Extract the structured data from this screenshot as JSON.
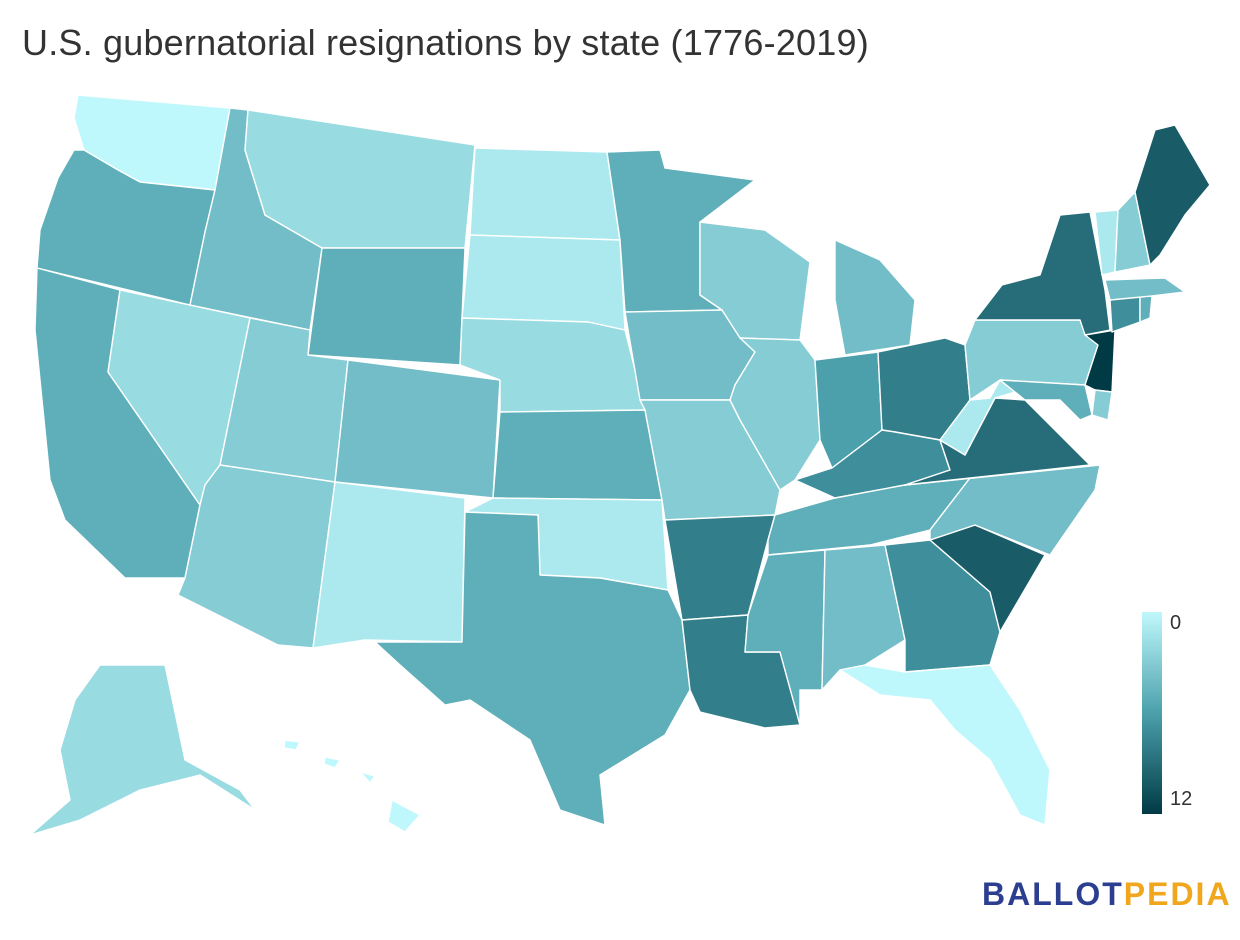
{
  "title": "U.S. gubernatorial resignations by state (1776-2019)",
  "legend": {
    "min_label": "0",
    "max_label": "12",
    "color_low": "#bff8fc",
    "color_mid": "#4ba0ac",
    "color_high": "#003a45"
  },
  "logo": {
    "part1": "BALLOT",
    "part2": "PEDIA",
    "color1": "#2c3e8f",
    "color2": "#f0a71d"
  },
  "chart_data": {
    "type": "heatmap",
    "scale": [
      0,
      12
    ],
    "states": [
      {
        "code": "WA",
        "value": 0
      },
      {
        "code": "OR",
        "value": 5
      },
      {
        "code": "CA",
        "value": 5
      },
      {
        "code": "ID",
        "value": 4
      },
      {
        "code": "NV",
        "value": 2
      },
      {
        "code": "MT",
        "value": 2
      },
      {
        "code": "WY",
        "value": 5
      },
      {
        "code": "UT",
        "value": 3
      },
      {
        "code": "AZ",
        "value": 3
      },
      {
        "code": "CO",
        "value": 4
      },
      {
        "code": "NM",
        "value": 1
      },
      {
        "code": "ND",
        "value": 1
      },
      {
        "code": "SD",
        "value": 1
      },
      {
        "code": "NE",
        "value": 2
      },
      {
        "code": "KS",
        "value": 5
      },
      {
        "code": "OK",
        "value": 1
      },
      {
        "code": "TX",
        "value": 5
      },
      {
        "code": "MN",
        "value": 5
      },
      {
        "code": "IA",
        "value": 4
      },
      {
        "code": "MO",
        "value": 3
      },
      {
        "code": "AR",
        "value": 8
      },
      {
        "code": "LA",
        "value": 8
      },
      {
        "code": "WI",
        "value": 3
      },
      {
        "code": "IL",
        "value": 3
      },
      {
        "code": "MI",
        "value": 4
      },
      {
        "code": "IN",
        "value": 6
      },
      {
        "code": "OH",
        "value": 8
      },
      {
        "code": "KY",
        "value": 7
      },
      {
        "code": "TN",
        "value": 5
      },
      {
        "code": "MS",
        "value": 5
      },
      {
        "code": "AL",
        "value": 4
      },
      {
        "code": "GA",
        "value": 7
      },
      {
        "code": "FL",
        "value": 0
      },
      {
        "code": "SC",
        "value": 10
      },
      {
        "code": "NC",
        "value": 4
      },
      {
        "code": "VA",
        "value": 9
      },
      {
        "code": "WV",
        "value": 1
      },
      {
        "code": "PA",
        "value": 3
      },
      {
        "code": "NY",
        "value": 9
      },
      {
        "code": "NJ",
        "value": 12
      },
      {
        "code": "DE",
        "value": 3
      },
      {
        "code": "MD",
        "value": 5
      },
      {
        "code": "CT",
        "value": 7
      },
      {
        "code": "RI",
        "value": 5
      },
      {
        "code": "MA",
        "value": 4
      },
      {
        "code": "VT",
        "value": 1
      },
      {
        "code": "NH",
        "value": 3
      },
      {
        "code": "ME",
        "value": 10
      },
      {
        "code": "AK",
        "value": 2
      },
      {
        "code": "HI",
        "value": 0
      }
    ]
  }
}
